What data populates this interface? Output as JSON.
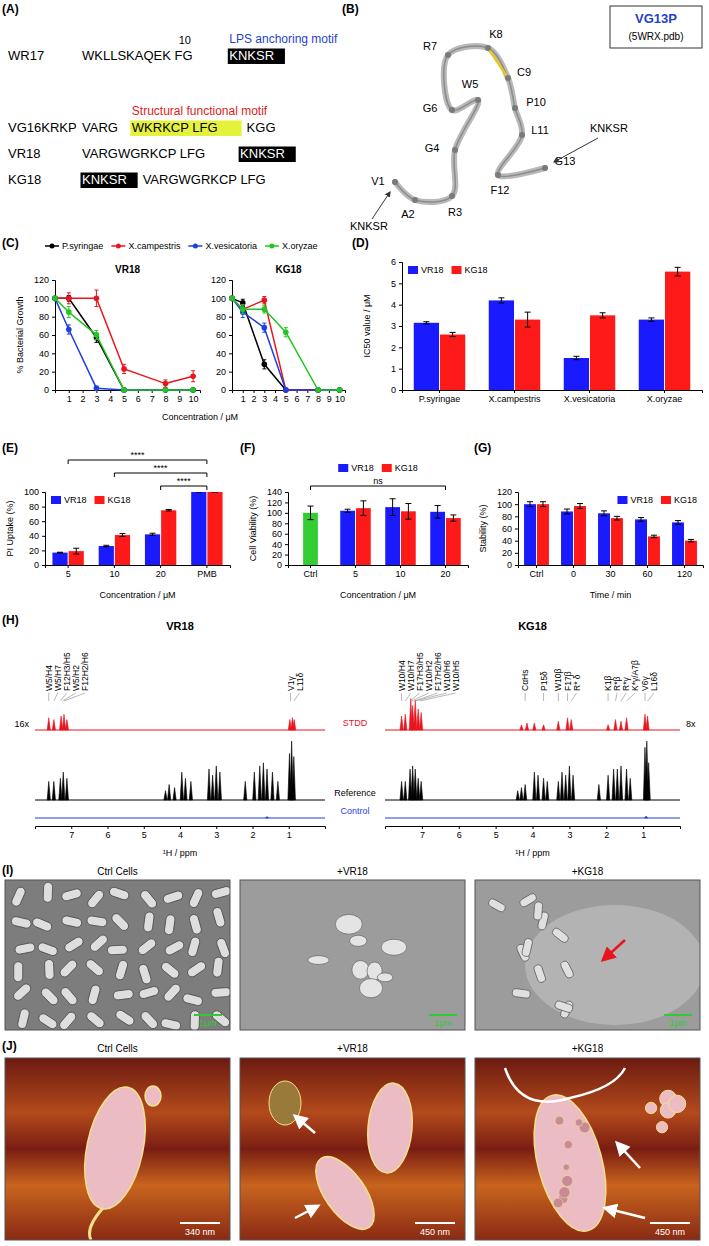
{
  "panel_labels": [
    "(A)",
    "(B)",
    "(C)",
    "(D)",
    "(E)",
    "(F)",
    "(G)",
    "(H)",
    "(I)",
    "(J)"
  ],
  "sequences": {
    "rows": [
      {
        "name": "WR17",
        "position_label": 10,
        "segments": [
          {
            "text": "WKLLSKAQEK FG"
          },
          {
            "text": "KNKSR",
            "style": "box"
          }
        ],
        "motif": "LPS anchoring motif",
        "motif_color": "#1f3fd0"
      },
      {
        "name": "VG16KRKP",
        "segments": [
          {
            "text": "VARG"
          },
          {
            "text": "WKRKCP LFG",
            "style": "highlight"
          },
          {
            "text": "KGG"
          }
        ],
        "motif": "Structural functional motif",
        "motif_color": "#e0201b"
      },
      {
        "name": "VR18",
        "segments": [
          {
            "text": "VARGWGRKCP LFG"
          },
          {
            "text": "KNKSR",
            "style": "box"
          }
        ]
      },
      {
        "name": "KG18",
        "segments": [
          {
            "text": "KNKSR",
            "style": "box"
          },
          {
            "text": "VARGWGRKCP LFG"
          }
        ]
      }
    ]
  },
  "structure": {
    "title": "VG13P",
    "subtitle": "(5WRX.pdb)",
    "residues": [
      "V1",
      "A2",
      "R3",
      "G4",
      "W5",
      "G6",
      "R7",
      "K8",
      "C9",
      "P10",
      "L11",
      "F12",
      "G13"
    ],
    "tails": [
      "KNKSR",
      "KNKSR"
    ]
  },
  "chart_data": [
    {
      "type": "line",
      "title": "VR18",
      "x_label": "Concentration / μM",
      "y_label": "% Bacterial Growth",
      "x": [
        0,
        1,
        3,
        5,
        8,
        10
      ],
      "xlim": [
        0,
        10.5
      ],
      "ylim": [
        0,
        120
      ],
      "xticks": [
        1,
        2,
        3,
        4,
        5,
        6,
        7,
        8,
        9,
        10
      ],
      "yticks": [
        0,
        20,
        40,
        60,
        80,
        100,
        120
      ],
      "marker": "circle",
      "legend": "top",
      "series": [
        {
          "name": "P.syringae",
          "color": "#000000",
          "values": [
            100,
            100,
            57,
            0,
            0,
            0
          ],
          "errors": [
            0,
            3,
            5,
            0,
            0,
            0
          ]
        },
        {
          "name": "X.campestris",
          "color": "#e8141e",
          "values": [
            100,
            100,
            100,
            23,
            7,
            15
          ],
          "errors": [
            0,
            6,
            9,
            5,
            4,
            6
          ]
        },
        {
          "name": "X.vesicatoria",
          "color": "#1f3fe0",
          "values": [
            100,
            66,
            2,
            0,
            0,
            0
          ],
          "errors": [
            0,
            5,
            2,
            0,
            0,
            0
          ]
        },
        {
          "name": "X.oryzae",
          "color": "#22c522",
          "values": [
            100,
            85,
            60,
            0,
            0,
            0
          ],
          "errors": [
            0,
            6,
            5,
            0,
            0,
            0
          ]
        }
      ]
    },
    {
      "type": "line",
      "title": "KG18",
      "x": [
        0,
        1,
        3,
        5,
        8,
        10
      ],
      "xlim": [
        0,
        10.5
      ],
      "ylim": [
        0,
        120
      ],
      "xticks": [
        1,
        2,
        3,
        4,
        5,
        6,
        7,
        8,
        9,
        10
      ],
      "yticks": [
        0,
        20,
        40,
        60,
        80,
        100,
        120
      ],
      "marker": "circle",
      "series": [
        {
          "name": "P.syringae",
          "color": "#000000",
          "values": [
            100,
            95,
            28,
            0,
            0,
            0
          ],
          "errors": [
            0,
            4,
            5,
            0,
            0,
            0
          ]
        },
        {
          "name": "X.campestris",
          "color": "#e8141e",
          "values": [
            100,
            88,
            98,
            0,
            0,
            0
          ],
          "errors": [
            0,
            5,
            4,
            0,
            0,
            0
          ]
        },
        {
          "name": "X.vesicatoria",
          "color": "#1f3fe0",
          "values": [
            100,
            85,
            68,
            0,
            0,
            0
          ],
          "errors": [
            0,
            6,
            5,
            0,
            0,
            0
          ]
        },
        {
          "name": "X.oryzae",
          "color": "#22c522",
          "values": [
            100,
            88,
            88,
            63,
            0,
            0
          ],
          "errors": [
            0,
            5,
            4,
            5,
            0,
            0
          ]
        }
      ]
    },
    {
      "type": "bar",
      "y_label": "IC50 value / μM",
      "categories": [
        "P.syringae",
        "X.campestris",
        "X.vesicatoria",
        "X.oryzae"
      ],
      "ylim": [
        0,
        6
      ],
      "yticks": [
        0,
        1,
        2,
        3,
        4,
        5,
        6
      ],
      "legend": "top-left",
      "series": [
        {
          "name": "VR18",
          "color": "#1a1aff",
          "values": [
            3.15,
            4.2,
            1.5,
            3.3
          ],
          "errors": [
            0.05,
            0.12,
            0.08,
            0.08
          ]
        },
        {
          "name": "KG18",
          "color": "#ff1a1a",
          "values": [
            2.6,
            3.3,
            3.5,
            5.55
          ],
          "errors": [
            0.1,
            0.35,
            0.12,
            0.2
          ]
        }
      ]
    },
    {
      "type": "bar",
      "x_label": "Concentration / μM",
      "y_label": "PI Uptake (%)",
      "categories": [
        "5",
        "10",
        "20",
        "PMB"
      ],
      "ylim": [
        0,
        100
      ],
      "yticks": [
        0,
        20,
        40,
        60,
        80,
        100
      ],
      "legend": "top-left",
      "series": [
        {
          "name": "VR18",
          "color": "#1a1aff",
          "values": [
            17,
            26,
            42,
            100
          ],
          "errors": [
            0.5,
            1,
            1.5,
            0
          ]
        },
        {
          "name": "KG18",
          "color": "#ff1a1a",
          "values": [
            19,
            41,
            75,
            100
          ],
          "errors": [
            4,
            2,
            1,
            0
          ]
        }
      ],
      "annotations": [
        {
          "text": "****",
          "from": "5",
          "to": "PMB"
        },
        {
          "text": "****",
          "from": "10",
          "to": "PMB"
        },
        {
          "text": "****",
          "from": "20",
          "to": "PMB"
        }
      ]
    },
    {
      "type": "bar",
      "x_label": "Concentration / μM",
      "y_label": "Cell Viability (%)",
      "categories": [
        "Ctrl",
        "5",
        "10",
        "20"
      ],
      "ylim": [
        0,
        140
      ],
      "yticks": [
        0,
        20,
        40,
        60,
        80,
        100,
        120,
        140
      ],
      "legend": "top",
      "series": [
        {
          "color": "#33cc33",
          "values": [
            100,
            null,
            null,
            null
          ],
          "errors": [
            13,
            null,
            null,
            null
          ]
        },
        {
          "name": "VR18",
          "color": "#1a1aff",
          "values": [
            null,
            104,
            111,
            102
          ],
          "errors": [
            null,
            3,
            16,
            12
          ]
        },
        {
          "name": "KG18",
          "color": "#ff1a1a",
          "values": [
            null,
            109,
            103,
            90
          ],
          "errors": [
            null,
            14,
            15,
            6
          ]
        }
      ],
      "annotations": [
        {
          "text": "ns",
          "from": "Ctrl",
          "to": "20"
        }
      ]
    },
    {
      "type": "bar",
      "x_label": "Time / min",
      "y_label": "Stability (%)",
      "categories": [
        "Ctrl",
        "0",
        "30",
        "60",
        "120"
      ],
      "ylim": [
        0,
        120
      ],
      "yticks": [
        0,
        20,
        40,
        60,
        80,
        100,
        120
      ],
      "legend": "top-right",
      "series": [
        {
          "name": "VR18",
          "color": "#1a1aff",
          "values": [
            100,
            88,
            85,
            75,
            70
          ],
          "errors": [
            4,
            4,
            4,
            3,
            3
          ]
        },
        {
          "name": "KG18",
          "color": "#ff1a1a",
          "values": [
            100,
            97,
            77,
            47,
            40
          ],
          "errors": [
            4,
            4,
            3,
            2,
            2
          ]
        }
      ]
    }
  ],
  "nmr": {
    "x_label": "¹H / ppm",
    "xlim": [
      8,
      0
    ],
    "xticks": [
      7,
      6,
      5,
      4,
      3,
      2,
      1
    ],
    "trace_names": [
      "STDD",
      "Reference",
      "Control"
    ],
    "trace_colors": [
      "#e8141e",
      "#000000",
      "#1f3fe0"
    ],
    "spectra": [
      {
        "title": "VR18",
        "scale_label": "16x",
        "traces": [
          [
            [
              7.62,
              0.35
            ],
            [
              7.48,
              0.3
            ],
            [
              7.28,
              0.4
            ],
            [
              7.2,
              0.45
            ],
            [
              7.12,
              0.3
            ],
            [
              0.97,
              0.3
            ],
            [
              0.9,
              0.35
            ],
            [
              0.85,
              0.3
            ]
          ],
          [
            [
              7.62,
              0.3
            ],
            [
              7.48,
              0.3
            ],
            [
              7.3,
              0.35
            ],
            [
              7.22,
              0.45
            ],
            [
              7.12,
              0.35
            ],
            [
              4.4,
              0.15
            ],
            [
              4.3,
              0.25
            ],
            [
              4.15,
              0.2
            ],
            [
              3.95,
              0.45
            ],
            [
              3.85,
              0.35
            ],
            [
              3.7,
              0.3
            ],
            [
              3.2,
              0.5
            ],
            [
              3.1,
              0.4
            ],
            [
              3.0,
              0.55
            ],
            [
              2.9,
              0.45
            ],
            [
              2.2,
              0.3
            ],
            [
              1.95,
              0.45
            ],
            [
              1.8,
              0.55
            ],
            [
              1.7,
              0.6
            ],
            [
              1.6,
              0.5
            ],
            [
              1.45,
              0.45
            ],
            [
              1.3,
              0.3
            ],
            [
              0.98,
              0.75
            ],
            [
              0.92,
              0.95
            ],
            [
              0.86,
              0.7
            ]
          ],
          [
            [
              1.6,
              0.06
            ]
          ]
        ],
        "labels": [
          {
            "text": "W5/H4",
            "ppm": 7.62
          },
          {
            "text": "W5/H7",
            "ppm": 7.48
          },
          {
            "text": "F12H3/H5",
            "ppm": 7.3
          },
          {
            "text": "W5/H2",
            "ppm": 7.24
          },
          {
            "text": "F12H2/H6",
            "ppm": 7.2
          },
          {
            "text": "V1γ",
            "ppm": 0.95
          },
          {
            "text": "L11δ",
            "ppm": 0.86
          }
        ]
      },
      {
        "title": "KG18",
        "scale_label": "8x",
        "traces": [
          [
            [
              7.55,
              0.4
            ],
            [
              7.45,
              0.45
            ],
            [
              7.3,
              0.9
            ],
            [
              7.25,
              0.7
            ],
            [
              7.18,
              0.85
            ],
            [
              7.1,
              0.6
            ],
            [
              7.02,
              0.5
            ],
            [
              4.3,
              0.15
            ],
            [
              4.15,
              0.2
            ],
            [
              3.95,
              0.2
            ],
            [
              3.7,
              0.15
            ],
            [
              3.3,
              0.25
            ],
            [
              3.05,
              0.35
            ],
            [
              2.95,
              0.3
            ],
            [
              1.95,
              0.15
            ],
            [
              1.75,
              0.3
            ],
            [
              1.6,
              0.25
            ],
            [
              1.45,
              0.35
            ],
            [
              0.95,
              0.45
            ],
            [
              0.88,
              0.4
            ]
          ],
          [
            [
              7.55,
              0.3
            ],
            [
              7.45,
              0.3
            ],
            [
              7.32,
              0.5
            ],
            [
              7.25,
              0.55
            ],
            [
              7.18,
              0.5
            ],
            [
              7.1,
              0.35
            ],
            [
              7.02,
              0.3
            ],
            [
              4.4,
              0.15
            ],
            [
              4.3,
              0.2
            ],
            [
              4.2,
              0.25
            ],
            [
              3.95,
              0.45
            ],
            [
              3.85,
              0.4
            ],
            [
              3.7,
              0.35
            ],
            [
              3.6,
              0.3
            ],
            [
              3.3,
              0.3
            ],
            [
              3.2,
              0.45
            ],
            [
              3.1,
              0.4
            ],
            [
              3.0,
              0.55
            ],
            [
              2.9,
              0.4
            ],
            [
              2.2,
              0.25
            ],
            [
              1.95,
              0.4
            ],
            [
              1.8,
              0.5
            ],
            [
              1.7,
              0.5
            ],
            [
              1.6,
              0.55
            ],
            [
              1.45,
              0.5
            ],
            [
              1.35,
              0.35
            ],
            [
              0.95,
              0.85
            ],
            [
              0.9,
              0.95
            ],
            [
              0.85,
              0.6
            ]
          ],
          [
            [
              0.92,
              0.08
            ]
          ]
        ],
        "labels": [
          {
            "text": "W10/H4",
            "ppm": 7.55
          },
          {
            "text": "W10/H7",
            "ppm": 7.45
          },
          {
            "text": "F17H3/H5",
            "ppm": 7.32
          },
          {
            "text": "W10/H2",
            "ppm": 7.28
          },
          {
            "text": "F17H2/H6",
            "ppm": 7.2
          },
          {
            "text": "W10/H6",
            "ppm": 7.18
          },
          {
            "text": "W10/H5",
            "ppm": 7.05
          },
          {
            "text": "CαHs",
            "ppm": 4.2
          },
          {
            "text": "P15δ",
            "ppm": 3.7
          },
          {
            "text": "W10β",
            "ppm": 3.3
          },
          {
            "text": "F17β",
            "ppm": 3.05
          },
          {
            "text": "R* δ",
            "ppm": 2.95
          },
          {
            "text": "K1β",
            "ppm": 1.95
          },
          {
            "text": "R*β",
            "ppm": 1.75
          },
          {
            "text": "R*γ",
            "ppm": 1.6
          },
          {
            "text": "K*γ/A7β",
            "ppm": 1.45
          },
          {
            "text": "V6γ",
            "ppm": 0.95
          },
          {
            "text": "L16δ",
            "ppm": 0.88
          }
        ]
      }
    ]
  },
  "sem": {
    "titles": [
      "Ctrl Cells",
      "+VR18",
      "+KG18"
    ],
    "scale_bars": [
      "1μm",
      "1μm",
      "1μm"
    ]
  },
  "afm": {
    "titles": [
      "Ctrl Cells",
      "+VR18",
      "+KG18"
    ],
    "scale_bars": [
      "340 nm",
      "450 nm",
      "450 nm"
    ]
  }
}
